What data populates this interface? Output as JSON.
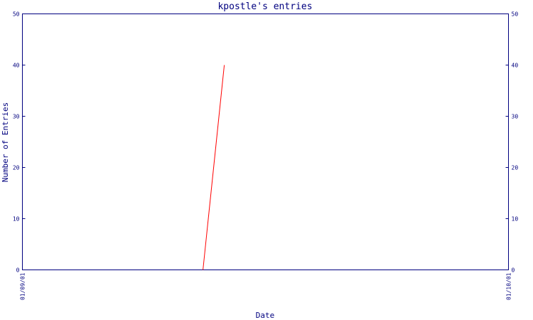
{
  "chart_data": {
    "type": "line",
    "title": "kpostle's entries",
    "xlabel": "Date",
    "ylabel": "Number of Entries",
    "x_tick_labels": [
      "01/09/01",
      "01/10/01"
    ],
    "xlim": [
      "2001-01-09",
      "2001-01-10"
    ],
    "ylim": [
      0,
      50
    ],
    "y_ticks": [
      0,
      10,
      20,
      30,
      40,
      50
    ],
    "grid": false,
    "colors": {
      "axis": "#00007f",
      "text": "#00007f",
      "series": "#ff0000"
    },
    "series": [
      {
        "x": [
          "2001-01-09 08:55",
          "2001-01-09 09:58"
        ],
        "y": [
          0,
          40
        ]
      }
    ]
  }
}
